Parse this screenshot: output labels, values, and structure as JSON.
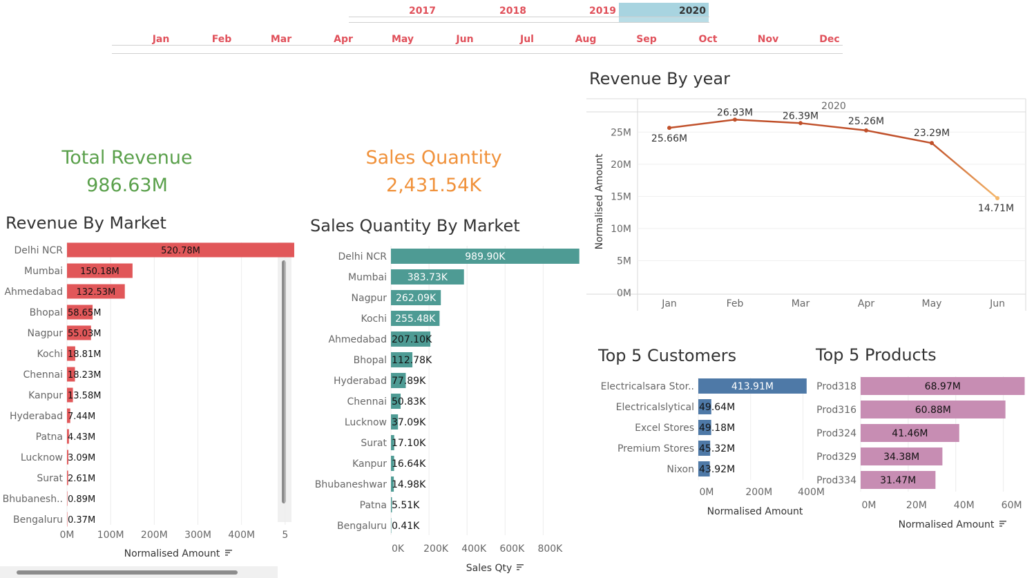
{
  "filters": {
    "years": [
      {
        "label": "2017",
        "selected": false
      },
      {
        "label": "2018",
        "selected": false
      },
      {
        "label": "2019",
        "selected": false
      },
      {
        "label": "2020",
        "selected": true
      }
    ],
    "months": [
      "Jan",
      "Feb",
      "Mar",
      "Apr",
      "May",
      "Jun",
      "Jul",
      "Aug",
      "Sep",
      "Oct",
      "Nov",
      "Dec"
    ],
    "colors": {
      "inactive": "#e0505a",
      "selected_bg": "#a8d4e0",
      "selected_text": "#333333"
    }
  },
  "kpis": {
    "revenue": {
      "label": "Total Revenue",
      "value": "986.63M",
      "color": "#5aa04b"
    },
    "quantity": {
      "label": "Sales Quantity",
      "value": "2,431.54K",
      "color": "#f0913a"
    }
  },
  "charts": {
    "revenue_by_market": {
      "title": "Revenue By Market",
      "xlabel": "Normalised Amount",
      "color": "#e15759",
      "ticks": [
        "0M",
        "100M",
        "200M",
        "300M",
        "400M",
        "5"
      ],
      "rows": [
        {
          "label": "Delhi NCR",
          "text": "520.78M"
        },
        {
          "label": "Mumbai",
          "text": "150.18M"
        },
        {
          "label": "Ahmedabad",
          "text": "132.53M"
        },
        {
          "label": "Bhopal",
          "text": "58.65M"
        },
        {
          "label": "Nagpur",
          "text": "55.03M"
        },
        {
          "label": "Kochi",
          "text": "18.81M"
        },
        {
          "label": "Chennai",
          "text": "18.23M"
        },
        {
          "label": "Kanpur",
          "text": "13.58M"
        },
        {
          "label": "Hyderabad",
          "text": "7.44M"
        },
        {
          "label": "Patna",
          "text": "4.43M"
        },
        {
          "label": "Lucknow",
          "text": "3.09M"
        },
        {
          "label": "Surat",
          "text": "2.61M"
        },
        {
          "label": "Bhubanesh..",
          "text": "0.89M"
        },
        {
          "label": "Bengaluru",
          "text": "0.37M"
        }
      ]
    },
    "sales_qty_by_market": {
      "title": "Sales Quantity By Market",
      "xlabel": "Sales Qty",
      "color": "#4e9b94",
      "ticks": [
        "0K",
        "200K",
        "400K",
        "600K",
        "800K"
      ],
      "rows": [
        {
          "label": "Delhi NCR",
          "text": "989.90K"
        },
        {
          "label": "Mumbai",
          "text": "383.73K"
        },
        {
          "label": "Nagpur",
          "text": "262.09K"
        },
        {
          "label": "Kochi",
          "text": "255.48K"
        },
        {
          "label": "Ahmedabad",
          "text": "207.10K"
        },
        {
          "label": "Bhopal",
          "text": "112.78K"
        },
        {
          "label": "Hyderabad",
          "text": "77.89K"
        },
        {
          "label": "Chennai",
          "text": "50.83K"
        },
        {
          "label": "Lucknow",
          "text": "37.09K"
        },
        {
          "label": "Surat",
          "text": "17.10K"
        },
        {
          "label": "Kanpur",
          "text": "16.64K"
        },
        {
          "label": "Bhubaneshwar",
          "text": "14.98K"
        },
        {
          "label": "Patna",
          "text": "5.51K"
        },
        {
          "label": "Bengaluru",
          "text": "0.41K"
        }
      ]
    },
    "revenue_by_year": {
      "title": "Revenue By year",
      "ylabel": "Normalised Amount",
      "header": "2020",
      "color": "#c0502a",
      "end_color": "#f5b76a",
      "yticks": [
        "0M",
        "5M",
        "10M",
        "15M",
        "20M",
        "25M"
      ],
      "points": [
        {
          "label": "Jan",
          "text": "25.66M"
        },
        {
          "label": "Feb",
          "text": "26.93M"
        },
        {
          "label": "Mar",
          "text": "26.39M"
        },
        {
          "label": "Apr",
          "text": "25.26M"
        },
        {
          "label": "May",
          "text": "23.29M"
        },
        {
          "label": "Jun",
          "text": "14.71M"
        }
      ]
    },
    "top_customers": {
      "title": "Top 5 Customers",
      "xlabel": "Normalised Amount",
      "color": "#4e79a7",
      "ticks": [
        "0M",
        "200M",
        "400M"
      ],
      "rows": [
        {
          "label": "Electricalsara Stor..",
          "text": "413.91M"
        },
        {
          "label": "Electricalslytical",
          "text": "49.64M"
        },
        {
          "label": "Excel Stores",
          "text": "49.18M"
        },
        {
          "label": "Premium Stores",
          "text": "45.32M"
        },
        {
          "label": "Nixon",
          "text": "43.92M"
        }
      ]
    },
    "top_products": {
      "title": "Top 5 Products",
      "xlabel": "Normalised Amount",
      "color": "#c78db3",
      "ticks": [
        "0M",
        "20M",
        "40M",
        "60M"
      ],
      "rows": [
        {
          "label": "Prod318",
          "text": "68.97M"
        },
        {
          "label": "Prod316",
          "text": "60.88M"
        },
        {
          "label": "Prod324",
          "text": "41.46M"
        },
        {
          "label": "Prod329",
          "text": "34.38M"
        },
        {
          "label": "Prod334",
          "text": "31.47M"
        }
      ]
    }
  },
  "chart_data": [
    {
      "type": "bar",
      "title": "Revenue By Market",
      "xlabel": "Normalised Amount",
      "ylabel": "",
      "categories": [
        "Delhi NCR",
        "Mumbai",
        "Ahmedabad",
        "Bhopal",
        "Nagpur",
        "Kochi",
        "Chennai",
        "Kanpur",
        "Hyderabad",
        "Patna",
        "Lucknow",
        "Surat",
        "Bhubanesh..",
        "Bengaluru"
      ],
      "values": [
        520.78,
        150.18,
        132.53,
        58.65,
        55.03,
        18.81,
        18.23,
        13.58,
        7.44,
        4.43,
        3.09,
        2.61,
        0.89,
        0.37
      ],
      "unit": "M",
      "xlim": [
        0,
        520
      ],
      "orientation": "horizontal",
      "grid": true
    },
    {
      "type": "bar",
      "title": "Sales Quantity By Market",
      "xlabel": "Sales Qty",
      "ylabel": "",
      "categories": [
        "Delhi NCR",
        "Mumbai",
        "Nagpur",
        "Kochi",
        "Ahmedabad",
        "Bhopal",
        "Hyderabad",
        "Chennai",
        "Lucknow",
        "Surat",
        "Kanpur",
        "Bhubaneshwar",
        "Patna",
        "Bengaluru"
      ],
      "values": [
        989.9,
        383.73,
        262.09,
        255.48,
        207.1,
        112.78,
        77.89,
        50.83,
        37.09,
        17.1,
        16.64,
        14.98,
        5.51,
        0.41
      ],
      "unit": "K",
      "xlim": [
        0,
        990
      ],
      "orientation": "horizontal",
      "grid": true
    },
    {
      "type": "line",
      "title": "Revenue By year",
      "xlabel": "",
      "ylabel": "Normalised Amount",
      "series_header": "2020",
      "x": [
        "Jan",
        "Feb",
        "Mar",
        "Apr",
        "May",
        "Jun"
      ],
      "values": [
        25.66,
        26.93,
        26.39,
        25.26,
        23.29,
        14.71
      ],
      "unit": "M",
      "ylim": [
        0,
        27
      ],
      "grid": true
    },
    {
      "type": "bar",
      "title": "Top 5 Customers",
      "xlabel": "Normalised Amount",
      "ylabel": "",
      "categories": [
        "Electricalsara Stor..",
        "Electricalslytical",
        "Excel Stores",
        "Premium Stores",
        "Nixon"
      ],
      "values": [
        413.91,
        49.64,
        49.18,
        45.32,
        43.92
      ],
      "unit": "M",
      "xlim": [
        0,
        414
      ],
      "orientation": "horizontal",
      "grid": true
    },
    {
      "type": "bar",
      "title": "Top 5 Products",
      "xlabel": "Normalised Amount",
      "ylabel": "",
      "categories": [
        "Prod318",
        "Prod316",
        "Prod324",
        "Prod329",
        "Prod334"
      ],
      "values": [
        68.97,
        60.88,
        41.46,
        34.38,
        31.47
      ],
      "unit": "M",
      "xlim": [
        0,
        69
      ],
      "orientation": "horizontal",
      "grid": true
    }
  ]
}
